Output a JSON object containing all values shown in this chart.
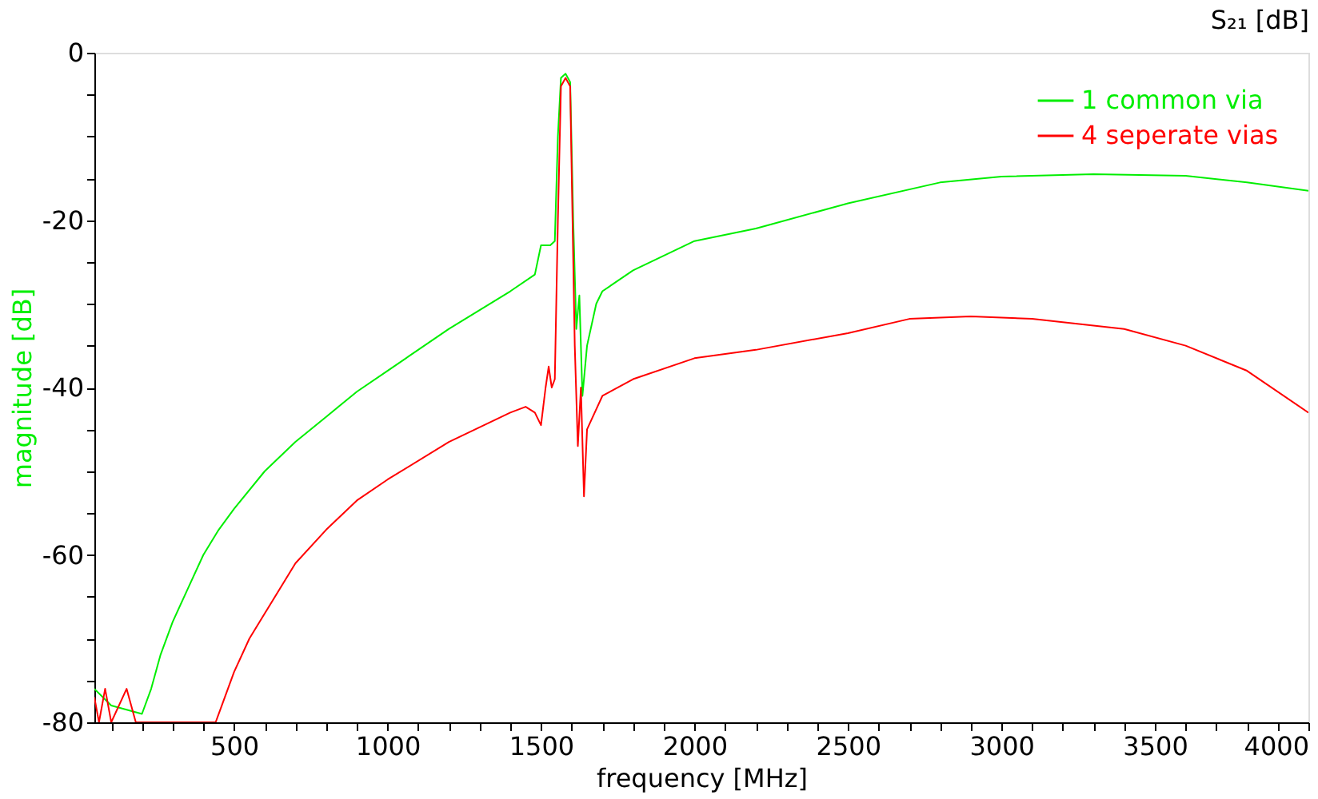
{
  "chart_data": {
    "type": "line",
    "title": "S₂₁ [dB]",
    "xlabel": "frequency [MHz]",
    "ylabel": "magnitude [dB]",
    "xlim": [
      45,
      4000
    ],
    "ylim": [
      -80,
      0
    ],
    "xticks": [
      {
        "value": 100,
        "label": null
      },
      {
        "value": 200,
        "label": null
      },
      {
        "value": 300,
        "label": null
      },
      {
        "value": 400,
        "label": null
      },
      500,
      {
        "value": 600,
        "label": null
      },
      {
        "value": 700,
        "label": null
      },
      {
        "value": 800,
        "label": null
      },
      {
        "value": 900,
        "label": null
      },
      1000,
      {
        "value": 1100,
        "label": null
      },
      {
        "value": 1200,
        "label": null
      },
      {
        "value": 1300,
        "label": null
      },
      {
        "value": 1400,
        "label": null
      },
      1500,
      {
        "value": 1600,
        "label": null
      },
      {
        "value": 1700,
        "label": null
      },
      {
        "value": 1800,
        "label": null
      },
      {
        "value": 1900,
        "label": null
      },
      2000,
      {
        "value": 2100,
        "label": null
      },
      {
        "value": 2200,
        "label": null
      },
      {
        "value": 2300,
        "label": null
      },
      {
        "value": 2400,
        "label": null
      },
      2500,
      {
        "value": 2600,
        "label": null
      },
      {
        "value": 2700,
        "label": null
      },
      {
        "value": 2800,
        "label": null
      },
      {
        "value": 2900,
        "label": null
      },
      3000,
      {
        "value": 3100,
        "label": null
      },
      {
        "value": 3200,
        "label": null
      },
      {
        "value": 3300,
        "label": null
      },
      {
        "value": 3400,
        "label": null
      },
      3500,
      {
        "value": 3600,
        "label": null
      },
      {
        "value": 3700,
        "label": null
      },
      {
        "value": 3800,
        "label": null
      },
      {
        "value": 3900,
        "label": null
      },
      4000
    ],
    "yticks": [
      -80,
      {
        "value": -75,
        "label": null
      },
      {
        "value": -70,
        "label": null
      },
      {
        "value": -65,
        "label": null
      },
      -60,
      {
        "value": -55,
        "label": null
      },
      {
        "value": -50,
        "label": null
      },
      {
        "value": -45,
        "label": null
      },
      -40,
      {
        "value": -35,
        "label": null
      },
      {
        "value": -30,
        "label": null
      },
      {
        "value": -25,
        "label": null
      },
      -20,
      {
        "value": -15,
        "label": null
      },
      {
        "value": -10,
        "label": null
      },
      {
        "value": -5,
        "label": null
      },
      0
    ],
    "grid": false,
    "legend": "top right",
    "line_style": "solid",
    "marker": "none",
    "series": [
      {
        "name": "1 common via",
        "color": "#00ee00",
        "x": [
          45,
          100,
          200,
          230,
          260,
          300,
          350,
          400,
          450,
          500,
          600,
          700,
          800,
          900,
          1000,
          1200,
          1400,
          1480,
          1500,
          1530,
          1545,
          1555,
          1565,
          1580,
          1595,
          1605,
          1615,
          1625,
          1635,
          1650,
          1680,
          1700,
          1800,
          2000,
          2200,
          2250,
          2500,
          2800,
          3000,
          3300,
          3600,
          3800,
          4000
        ],
        "values": [
          -76,
          -78,
          -79,
          -76,
          -72,
          -68,
          -64,
          -60,
          -57,
          -54.5,
          -50,
          -46.5,
          -43.5,
          -40.5,
          -38,
          -33,
          -28.5,
          -26.5,
          -23,
          -23,
          -22.5,
          -10,
          -3,
          -2.5,
          -3.5,
          -20,
          -33,
          -29,
          -41,
          -35,
          -30,
          -28.5,
          -26,
          -22.5,
          -21,
          -20.5,
          -18,
          -15.5,
          -14.8,
          -14.5,
          -14.7,
          -15.5,
          -16.5
        ]
      },
      {
        "name": "4 seperate vias",
        "color": "#ff0000",
        "x": [
          45,
          60,
          80,
          100,
          150,
          180,
          440,
          460,
          500,
          550,
          600,
          700,
          800,
          900,
          1000,
          1200,
          1400,
          1450,
          1480,
          1500,
          1515,
          1525,
          1535,
          1545,
          1555,
          1565,
          1580,
          1595,
          1610,
          1620,
          1630,
          1640,
          1650,
          1700,
          1800,
          2000,
          2200,
          2500,
          2700,
          2900,
          3100,
          3400,
          3600,
          3800,
          4000
        ],
        "values": [
          -77,
          -80,
          -76,
          -80,
          -76,
          -80,
          -80,
          -78,
          -74,
          -70,
          -67,
          -61,
          -57,
          -53.5,
          -51,
          -46.5,
          -43,
          -42.3,
          -43,
          -44.5,
          -40,
          -37.5,
          -40,
          -39,
          -20,
          -4,
          -3,
          -4,
          -35,
          -47,
          -40,
          -53,
          -45,
          -41,
          -39,
          -36.5,
          -35.5,
          -33.5,
          -31.8,
          -31.5,
          -31.8,
          -33,
          -35,
          -38,
          -43
        ]
      }
    ]
  }
}
